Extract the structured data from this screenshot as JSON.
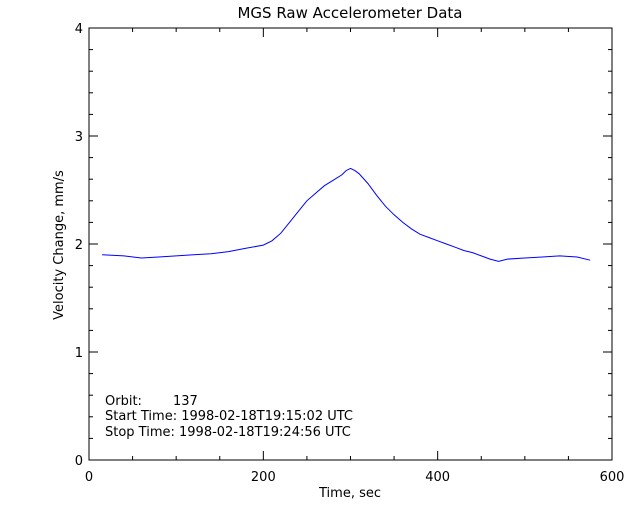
{
  "chart_data": {
    "type": "line",
    "title": "MGS Raw Accelerometer Data",
    "xlabel": "Time, sec",
    "ylabel": "Velocity Change, mm/s",
    "xlim": [
      0,
      600
    ],
    "ylim": [
      0,
      4
    ],
    "xticks": [
      "0",
      "200",
      "400",
      "600"
    ],
    "yticks": [
      "0",
      "1",
      "2",
      "3",
      "4"
    ],
    "grid": false,
    "legend": "none",
    "line_color": "#0000ff",
    "series": [
      {
        "x": [
          15,
          40,
          60,
          80,
          100,
          120,
          140,
          160,
          180,
          200,
          210,
          220,
          230,
          240,
          250,
          260,
          270,
          280,
          290,
          295,
          300,
          305,
          310,
          320,
          330,
          340,
          350,
          360,
          370,
          380,
          390,
          400,
          410,
          420,
          430,
          440,
          450,
          460,
          470,
          480,
          500,
          520,
          540,
          560,
          575
        ],
        "y": [
          1.9,
          1.89,
          1.87,
          1.88,
          1.89,
          1.9,
          1.91,
          1.93,
          1.96,
          1.99,
          2.03,
          2.1,
          2.2,
          2.3,
          2.4,
          2.47,
          2.54,
          2.59,
          2.64,
          2.68,
          2.7,
          2.68,
          2.65,
          2.56,
          2.45,
          2.35,
          2.27,
          2.2,
          2.14,
          2.09,
          2.06,
          2.03,
          2.0,
          1.97,
          1.94,
          1.92,
          1.89,
          1.86,
          1.84,
          1.86,
          1.87,
          1.88,
          1.89,
          1.88,
          1.85
        ]
      }
    ],
    "annotations": {
      "orbit_label": "Orbit:",
      "orbit_value": "137",
      "start_time": "Start Time: 1998-02-18T19:15:02 UTC",
      "stop_time": "Stop Time: 1998-02-18T19:24:56 UTC"
    }
  }
}
